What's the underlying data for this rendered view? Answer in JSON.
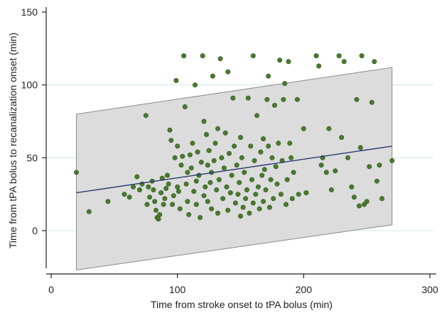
{
  "chart_data": {
    "type": "scatter",
    "xlabel": "Time from stroke onset to tPA bolus (min)",
    "ylabel": "Time from tPA bolus to recanalization onset (min)",
    "xlim": [
      -5,
      305
    ],
    "ylim": [
      -27,
      152
    ],
    "x_ticks": [
      0,
      100,
      200,
      300
    ],
    "y_ticks": [
      0,
      50,
      100,
      150
    ],
    "grid": "horizontal",
    "colors": {
      "points": "#4a7a2e",
      "points_edge": "#2f5a1c",
      "fit_line": "#2b3a6e",
      "band_fill": "#dcdcdc",
      "band_edge": "#8a8a8a",
      "grid": "#cfe8e8",
      "axis": "#222222"
    },
    "fit_line": {
      "x": [
        20,
        270
      ],
      "y": [
        26,
        58
      ]
    },
    "prediction_band": {
      "x": [
        20,
        270
      ],
      "upper": [
        80,
        112
      ],
      "lower": [
        -27,
        4
      ]
    },
    "points": [
      [
        20,
        40
      ],
      [
        30,
        13
      ],
      [
        45,
        20
      ],
      [
        58,
        25
      ],
      [
        62,
        23
      ],
      [
        65,
        30
      ],
      [
        68,
        37
      ],
      [
        70,
        28
      ],
      [
        72,
        32
      ],
      [
        75,
        79
      ],
      [
        76,
        18
      ],
      [
        77,
        30
      ],
      [
        78,
        23
      ],
      [
        80,
        34
      ],
      [
        81,
        28
      ],
      [
        82,
        20
      ],
      [
        83,
        14
      ],
      [
        84,
        9
      ],
      [
        85,
        8
      ],
      [
        86,
        11
      ],
      [
        87,
        26
      ],
      [
        88,
        36
      ],
      [
        89,
        18
      ],
      [
        90,
        22
      ],
      [
        91,
        29
      ],
      [
        92,
        38
      ],
      [
        93,
        32
      ],
      [
        94,
        69
      ],
      [
        95,
        62
      ],
      [
        96,
        18
      ],
      [
        97,
        24
      ],
      [
        98,
        50
      ],
      [
        99,
        103
      ],
      [
        100,
        58
      ],
      [
        100,
        30
      ],
      [
        101,
        27
      ],
      [
        102,
        15
      ],
      [
        103,
        45
      ],
      [
        104,
        51
      ],
      [
        105,
        120
      ],
      [
        106,
        85
      ],
      [
        107,
        32
      ],
      [
        108,
        20
      ],
      [
        108,
        40
      ],
      [
        109,
        11
      ],
      [
        110,
        52
      ],
      [
        111,
        43
      ],
      [
        112,
        60
      ],
      [
        113,
        27
      ],
      [
        114,
        100
      ],
      [
        115,
        18
      ],
      [
        115,
        34
      ],
      [
        116,
        54
      ],
      [
        117,
        38
      ],
      [
        118,
        9
      ],
      [
        119,
        47
      ],
      [
        120,
        120
      ],
      [
        121,
        24
      ],
      [
        121,
        75
      ],
      [
        122,
        30
      ],
      [
        123,
        66
      ],
      [
        124,
        20
      ],
      [
        124,
        45
      ],
      [
        125,
        55
      ],
      [
        126,
        33
      ],
      [
        127,
        15
      ],
      [
        127,
        40
      ],
      [
        128,
        106
      ],
      [
        129,
        48
      ],
      [
        130,
        60
      ],
      [
        131,
        28
      ],
      [
        132,
        70
      ],
      [
        132,
        12
      ],
      [
        133,
        35
      ],
      [
        134,
        118
      ],
      [
        135,
        50
      ],
      [
        136,
        22
      ],
      [
        137,
        43
      ],
      [
        138,
        67
      ],
      [
        139,
        30
      ],
      [
        140,
        109
      ],
      [
        140,
        14
      ],
      [
        141,
        53
      ],
      [
        142,
        26
      ],
      [
        143,
        38
      ],
      [
        144,
        91
      ],
      [
        145,
        58
      ],
      [
        146,
        19
      ],
      [
        147,
        45
      ],
      [
        148,
        25
      ],
      [
        149,
        33
      ],
      [
        150,
        64
      ],
      [
        150,
        10
      ],
      [
        151,
        50
      ],
      [
        152,
        16
      ],
      [
        153,
        40
      ],
      [
        154,
        22
      ],
      [
        155,
        28
      ],
      [
        156,
        91
      ],
      [
        157,
        12
      ],
      [
        158,
        58
      ],
      [
        159,
        35
      ],
      [
        160,
        120
      ],
      [
        160,
        19
      ],
      [
        161,
        48
      ],
      [
        162,
        25
      ],
      [
        163,
        79
      ],
      [
        164,
        30
      ],
      [
        165,
        15
      ],
      [
        166,
        54
      ],
      [
        167,
        38
      ],
      [
        168,
        63
      ],
      [
        168,
        20
      ],
      [
        169,
        42
      ],
      [
        170,
        28
      ],
      [
        171,
        90
      ],
      [
        172,
        106
      ],
      [
        172,
        58
      ],
      [
        173,
        16
      ],
      [
        174,
        35
      ],
      [
        175,
        50
      ],
      [
        176,
        22
      ],
      [
        177,
        86
      ],
      [
        178,
        44
      ],
      [
        179,
        32
      ],
      [
        180,
        60
      ],
      [
        181,
        117
      ],
      [
        182,
        25
      ],
      [
        183,
        48
      ],
      [
        184,
        90
      ],
      [
        185,
        101
      ],
      [
        186,
        18
      ],
      [
        187,
        35
      ],
      [
        188,
        116
      ],
      [
        189,
        60
      ],
      [
        190,
        50
      ],
      [
        191,
        22
      ],
      [
        192,
        40
      ],
      [
        195,
        90
      ],
      [
        196,
        25
      ],
      [
        200,
        70
      ],
      [
        202,
        26
      ],
      [
        210,
        120
      ],
      [
        212,
        113
      ],
      [
        214,
        45
      ],
      [
        215,
        50
      ],
      [
        218,
        40
      ],
      [
        220,
        70
      ],
      [
        222,
        28
      ],
      [
        225,
        41
      ],
      [
        228,
        120
      ],
      [
        230,
        64
      ],
      [
        232,
        116
      ],
      [
        235,
        50
      ],
      [
        238,
        30
      ],
      [
        240,
        23
      ],
      [
        242,
        90
      ],
      [
        244,
        17
      ],
      [
        245,
        57
      ],
      [
        246,
        120
      ],
      [
        248,
        18
      ],
      [
        250,
        20
      ],
      [
        252,
        44
      ],
      [
        254,
        88
      ],
      [
        256,
        116
      ],
      [
        258,
        34
      ],
      [
        260,
        45
      ],
      [
        262,
        22
      ],
      [
        270,
        48
      ]
    ]
  }
}
